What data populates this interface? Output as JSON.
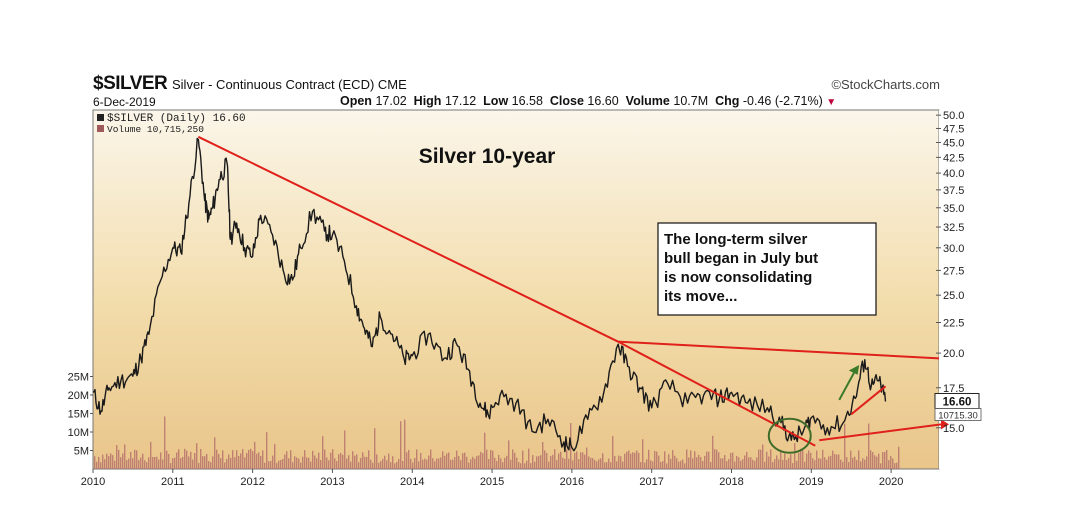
{
  "header": {
    "symbol": "$SILVER",
    "name": "Silver - Continuous Contract (ECD)",
    "exchange": "CME",
    "source": "©StockCharts.com",
    "date": "6-Dec-2019",
    "open_label": "Open",
    "open": "17.02",
    "high_label": "High",
    "high": "17.12",
    "low_label": "Low",
    "low": "16.58",
    "close_label": "Close",
    "close": "16.60",
    "volume_label": "Volume",
    "volume": "10.7M",
    "chg_label": "Chg",
    "chg": "-0.46 (-2.71%)"
  },
  "chart_data": {
    "type": "line",
    "title": "Silver 10-year",
    "legend": [
      {
        "label": "$SILVER (Daily) 16.60",
        "color": "#222222"
      },
      {
        "label": "Volume 10,715,250",
        "color": "#a05a5a"
      }
    ],
    "x_ticks": [
      "2010",
      "2011",
      "2012",
      "2013",
      "2014",
      "2015",
      "2016",
      "2017",
      "2018",
      "2019",
      "2020"
    ],
    "x_tick_years": [
      2010,
      2011,
      2012,
      2013,
      2014,
      2015,
      2016,
      2017,
      2018,
      2019,
      2020
    ],
    "price_axis": {
      "ticks": [
        15.0,
        17.5,
        20.0,
        22.5,
        25.0,
        27.5,
        30.0,
        32.5,
        35.0,
        37.5,
        40.0,
        42.5,
        45.0,
        47.5,
        50.0
      ],
      "tick_labels": [
        "15.0",
        "17.5",
        "20.0",
        "22.5",
        "25.0",
        "27.5",
        "30.0",
        "32.5",
        "35.0",
        "37.5",
        "40.0",
        "42.5",
        "45.0",
        "47.5",
        "50.0"
      ],
      "scale": "log",
      "range": [
        12.8,
        51
      ]
    },
    "volume_axis": {
      "ticks": [
        5,
        10,
        15,
        20,
        25
      ],
      "tick_labels": [
        "5M",
        "10M",
        "15M",
        "20M",
        "25M"
      ],
      "range": [
        0,
        30
      ]
    },
    "price_series": {
      "name": "$SILVER",
      "x": [
        2010.0,
        2010.1,
        2010.2,
        2010.35,
        2010.5,
        2010.6,
        2010.7,
        2010.85,
        2011.0,
        2011.1,
        2011.2,
        2011.32,
        2011.4,
        2011.45,
        2011.5,
        2011.58,
        2011.68,
        2011.72,
        2011.8,
        2011.9,
        2012.0,
        2012.1,
        2012.25,
        2012.4,
        2012.5,
        2012.6,
        2012.75,
        2012.9,
        2013.0,
        2013.15,
        2013.3,
        2013.4,
        2013.5,
        2013.6,
        2013.75,
        2013.9,
        2014.0,
        2014.2,
        2014.4,
        2014.55,
        2014.7,
        2014.85,
        2014.95,
        2015.1,
        2015.3,
        2015.5,
        2015.7,
        2015.9,
        2016.0,
        2016.2,
        2016.4,
        2016.58,
        2016.7,
        2016.85,
        2017.0,
        2017.2,
        2017.45,
        2017.65,
        2017.85,
        2018.0,
        2018.2,
        2018.45,
        2018.62,
        2018.75,
        2018.9,
        2019.0,
        2019.2,
        2019.4,
        2019.55,
        2019.67,
        2019.75,
        2019.85,
        2019.93
      ],
      "y": [
        17.2,
        16.0,
        17.5,
        18.0,
        18.3,
        19.6,
        21.5,
        26.5,
        30.0,
        29.5,
        35.5,
        45.5,
        36.0,
        33.5,
        35.0,
        39.0,
        41.5,
        31.0,
        33.0,
        30.0,
        29.0,
        34.0,
        31.5,
        27.0,
        26.5,
        30.0,
        34.5,
        32.0,
        31.5,
        28.5,
        24.0,
        22.0,
        20.5,
        23.0,
        21.5,
        19.5,
        19.8,
        21.5,
        19.6,
        20.8,
        18.8,
        16.5,
        15.8,
        17.0,
        16.5,
        14.8,
        15.5,
        14.2,
        13.9,
        15.5,
        17.2,
        20.7,
        19.0,
        17.5,
        16.2,
        17.8,
        16.5,
        17.0,
        16.8,
        17.2,
        16.5,
        16.2,
        15.3,
        14.3,
        14.8,
        15.6,
        15.0,
        15.3,
        16.8,
        19.5,
        17.6,
        18.0,
        16.6
      ]
    },
    "volume_series": {
      "name": "Volume",
      "note": "daily volume bars, typically 2-6M with occasional spikes to ~25M"
    },
    "annotations": {
      "text": "The long-term silver bull began in July but is now consolidating its move...",
      "price_label": "16.60",
      "volume_label": "10715.30",
      "trendlines": [
        {
          "x": [
            2011.32,
            2016.58
          ],
          "y": [
            46.0,
            20.9
          ]
        },
        {
          "x": [
            2016.58,
            2020.6
          ],
          "y": [
            20.9,
            19.6
          ]
        },
        {
          "x": [
            2016.58,
            2019.05
          ],
          "y": [
            20.9,
            14.0
          ]
        },
        {
          "x": [
            2019.5,
            2019.93
          ],
          "y": [
            15.8,
            17.6
          ]
        }
      ]
    }
  },
  "colors": {
    "trendline": "#e0201a",
    "price": "#1a1a1a",
    "volume": "#b06868",
    "up_arrow": "#3a7a28",
    "circle": "#3f6b2a"
  }
}
